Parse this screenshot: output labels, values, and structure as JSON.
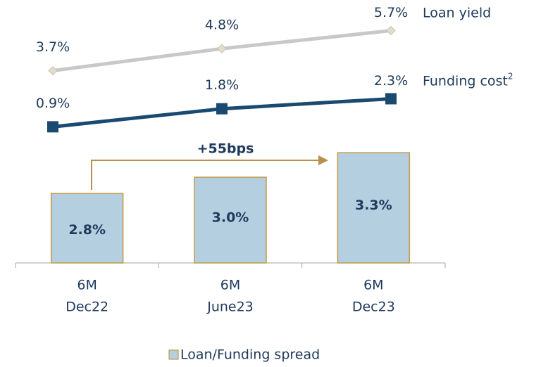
{
  "chart_data": {
    "type": "bar",
    "categories": [
      [
        "6M",
        "Dec22"
      ],
      [
        "6M",
        "June23"
      ],
      [
        "6M",
        "Dec23"
      ]
    ],
    "values": [
      2.8,
      3.0,
      3.3
    ],
    "value_labels": [
      "2.8%",
      "3.0%",
      "3.3%"
    ],
    "name": "Loan/Funding spread",
    "color": "#b4cfe0",
    "edge_color": "#c49a45",
    "ylim": [
      1.95,
      4.55
    ],
    "annotation": "+55bps",
    "lines": [
      {
        "name": "Loan yield",
        "color": "#c8c8c8",
        "marker_color": "#e3dccb",
        "marker": "diamond",
        "values": [
          3.7,
          4.8,
          5.7
        ],
        "value_labels": [
          "3.7%",
          "4.8%",
          "5.7%"
        ]
      },
      {
        "name": "Funding cost",
        "footnote": "2",
        "color": "#1a4a70",
        "marker_color": "#1a4a70",
        "marker": "square",
        "values": [
          0.9,
          1.8,
          2.3
        ],
        "value_labels": [
          "0.9%",
          "1.8%",
          "2.3%"
        ]
      }
    ],
    "y2lim": [
      0,
      6
    ]
  }
}
